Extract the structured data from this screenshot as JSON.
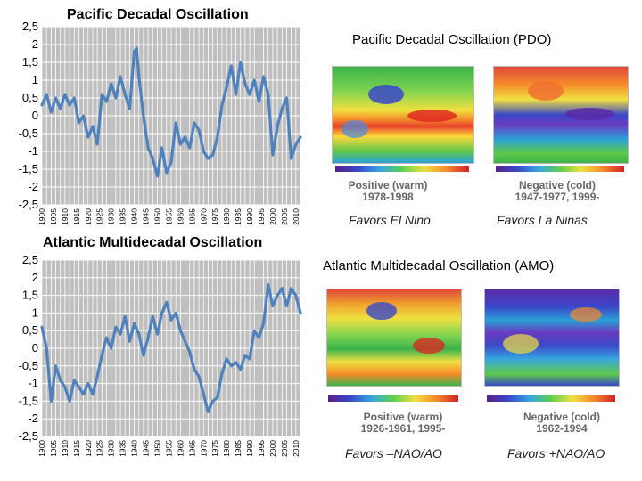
{
  "pdo_chart_title": "Pacific Decadal Oscillation",
  "amo_chart_title": "Atlantic Multidecadal Oscillation",
  "pdo_panel": {
    "title": "Pacific Decadal Oscillation (PDO)",
    "positive_line1": "Positive (warm)",
    "positive_line2": "1978-1998",
    "negative_line1": "Negative (cold)",
    "negative_line2": "1947-1977, 1999-",
    "caption_left": "Favors El Nino",
    "caption_right": "Favors La Ninas"
  },
  "amo_panel": {
    "title": "Atlantic Multidecadal Oscillation (AMO)",
    "positive_line1": "Positive (warm)",
    "positive_line2": "1926-1961, 1995-",
    "negative_line1": "Negative (cold)",
    "negative_line2": "1962-1994",
    "caption_left": "Favors –NAO/AO",
    "caption_right": "Favors +NAO/AO"
  },
  "colors": {
    "line": "#4f81bd",
    "plot_bg": "#bfbfbf",
    "grid": "#ffffff"
  },
  "chart_data": [
    {
      "type": "line",
      "title": "Pacific Decadal Oscillation",
      "xlabel": "",
      "ylabel": "",
      "ylim": [
        -2.5,
        2.5
      ],
      "xlim": [
        1900,
        2012
      ],
      "grid": true,
      "y_ticks": [
        "2,5",
        "2",
        "1,5",
        "1",
        "0,5",
        "0",
        "-0,5",
        "-1",
        "-1,5",
        "-2",
        "-2,5"
      ],
      "x_ticks": [
        "1900",
        "1905",
        "1910",
        "1915",
        "1920",
        "1925",
        "1930",
        "1935",
        "1940",
        "1945",
        "1950",
        "1955",
        "1960",
        "1965",
        "1970",
        "1975",
        "1980",
        "1985",
        "1990",
        "1995",
        "2000",
        "2005",
        "2010"
      ],
      "series": [
        {
          "name": "PDO",
          "x": [
            1900,
            1902,
            1904,
            1906,
            1908,
            1910,
            1912,
            1914,
            1916,
            1918,
            1920,
            1922,
            1924,
            1926,
            1928,
            1930,
            1932,
            1934,
            1936,
            1938,
            1940,
            1941,
            1942,
            1944,
            1946,
            1948,
            1950,
            1952,
            1954,
            1956,
            1958,
            1960,
            1962,
            1964,
            1966,
            1968,
            1970,
            1972,
            1974,
            1976,
            1978,
            1980,
            1982,
            1984,
            1986,
            1988,
            1990,
            1992,
            1994,
            1996,
            1998,
            2000,
            2002,
            2004,
            2006,
            2008,
            2010,
            2012
          ],
          "values": [
            0.3,
            0.6,
            0.1,
            0.5,
            0.2,
            0.6,
            0.3,
            0.5,
            -0.2,
            0.0,
            -0.6,
            -0.3,
            -0.8,
            0.6,
            0.4,
            0.9,
            0.5,
            1.1,
            0.6,
            0.2,
            1.8,
            1.9,
            1.1,
            0.0,
            -0.9,
            -1.2,
            -1.7,
            -0.9,
            -1.6,
            -1.3,
            -0.2,
            -0.8,
            -0.6,
            -0.9,
            -0.2,
            -0.4,
            -1.0,
            -1.2,
            -1.1,
            -0.6,
            0.3,
            0.8,
            1.4,
            0.6,
            1.5,
            0.9,
            0.6,
            1.0,
            0.4,
            1.1,
            0.6,
            -1.1,
            -0.3,
            0.2,
            0.5,
            -1.2,
            -0.8,
            -0.6
          ]
        }
      ]
    },
    {
      "type": "line",
      "title": "Atlantic Multidecadal Oscillation",
      "xlabel": "",
      "ylabel": "",
      "ylim": [
        -2.5,
        2.5
      ],
      "xlim": [
        1900,
        2012
      ],
      "grid": true,
      "y_ticks": [
        "2,5",
        "2",
        "1,5",
        "1",
        "0,5",
        "0",
        "-0,5",
        "-1",
        "-1,5",
        "-2",
        "-2,5"
      ],
      "x_ticks": [
        "1900",
        "1905",
        "1910",
        "1915",
        "1920",
        "1925",
        "1930",
        "1935",
        "1940",
        "1945",
        "1950",
        "1955",
        "1960",
        "1965",
        "1970",
        "1975",
        "1980",
        "1985",
        "1990",
        "1995",
        "2000",
        "2005",
        "2010"
      ],
      "series": [
        {
          "name": "AMO",
          "x": [
            1900,
            1902,
            1904,
            1906,
            1908,
            1910,
            1912,
            1914,
            1916,
            1918,
            1920,
            1922,
            1924,
            1926,
            1928,
            1930,
            1932,
            1934,
            1936,
            1938,
            1940,
            1942,
            1944,
            1946,
            1948,
            1950,
            1952,
            1954,
            1956,
            1958,
            1960,
            1962,
            1964,
            1966,
            1968,
            1970,
            1972,
            1974,
            1976,
            1978,
            1980,
            1982,
            1984,
            1986,
            1988,
            1990,
            1992,
            1994,
            1996,
            1998,
            2000,
            2002,
            2004,
            2006,
            2008,
            2010,
            2012
          ],
          "values": [
            0.6,
            0.0,
            -1.5,
            -0.5,
            -0.9,
            -1.1,
            -1.5,
            -0.9,
            -1.1,
            -1.3,
            -1.0,
            -1.3,
            -0.8,
            -0.2,
            0.3,
            0.0,
            0.6,
            0.4,
            0.9,
            0.2,
            0.7,
            0.4,
            -0.2,
            0.3,
            0.9,
            0.4,
            1.0,
            1.3,
            0.8,
            1.0,
            0.5,
            0.2,
            -0.1,
            -0.6,
            -0.8,
            -1.3,
            -1.8,
            -1.5,
            -1.4,
            -0.7,
            -0.3,
            -0.5,
            -0.4,
            -0.6,
            -0.2,
            -0.3,
            0.5,
            0.3,
            0.7,
            1.8,
            1.2,
            1.5,
            1.7,
            1.2,
            1.7,
            1.5,
            1.0
          ]
        }
      ]
    }
  ]
}
